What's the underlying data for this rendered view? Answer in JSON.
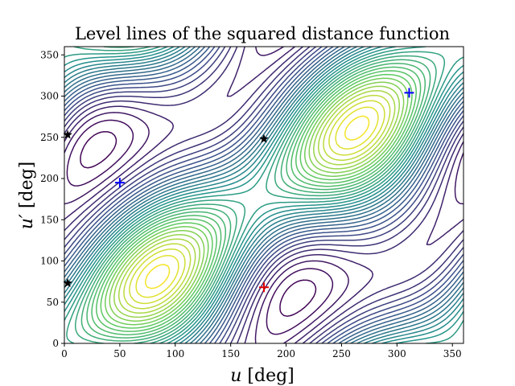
{
  "chart_data": {
    "type": "contour",
    "title": "Level lines of the squared distance function",
    "xlabel": "u [deg]",
    "ylabel": "u′ [deg]",
    "xlabel_parts": {
      "var": "u",
      "unit": " [deg]"
    },
    "ylabel_parts": {
      "var": "u′",
      "unit": " [deg]"
    },
    "xlim": [
      0,
      360
    ],
    "ylim": [
      0,
      360
    ],
    "xticks": [
      0,
      50,
      100,
      150,
      200,
      250,
      300,
      350
    ],
    "yticks": [
      0,
      50,
      100,
      150,
      200,
      250,
      300,
      350
    ],
    "colormap": [
      "#440154",
      "#3b528b",
      "#21918c",
      "#5ec962",
      "#fde725"
    ],
    "grid": false,
    "markers": [
      {
        "symbol": "plus",
        "x": 180,
        "y": 68,
        "color": "#e00000"
      },
      {
        "symbol": "plus",
        "x": 50,
        "y": 195,
        "color": "#0000ff"
      },
      {
        "symbol": "plus",
        "x": 311,
        "y": 304,
        "color": "#0000ff"
      },
      {
        "symbol": "star",
        "x": 180,
        "y": 248,
        "color": "#000000"
      },
      {
        "symbol": "star",
        "x": 3,
        "y": 253,
        "color": "#000000"
      },
      {
        "symbol": "star",
        "x": 3,
        "y": 73,
        "color": "#000000"
      }
    ]
  }
}
